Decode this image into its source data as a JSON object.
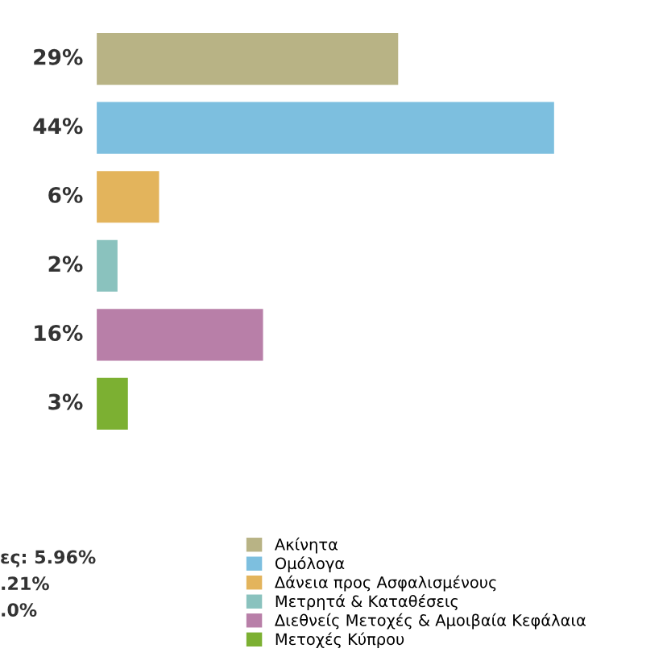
{
  "chart_data": {
    "type": "bar",
    "orientation": "horizontal",
    "stacked": true,
    "categories": [
      null,
      null,
      null,
      null,
      null,
      null
    ],
    "series": [
      {
        "name": "Ακίνητα",
        "color": "#b8b385",
        "values": [
          29,
          null,
          null,
          null,
          null,
          null
        ],
        "value_labels": [
          "29%",
          null,
          null,
          null,
          null,
          null
        ]
      },
      {
        "name": "Ομόλογα",
        "color": "#7dbfdf",
        "values": [
          null,
          44,
          null,
          null,
          null,
          null
        ],
        "value_labels": [
          null,
          "44%",
          null,
          null,
          null,
          null
        ]
      },
      {
        "name": "Δάνεια προς Ασφαλισμένους",
        "color": "#e3b45c",
        "values": [
          null,
          null,
          6,
          null,
          null,
          null
        ],
        "value_labels": [
          null,
          null,
          "6%",
          null,
          null,
          null
        ]
      },
      {
        "name": "Μετρητά & Καταθέσεις",
        "color": "#8ac2be",
        "values": [
          null,
          null,
          null,
          2,
          null,
          null
        ],
        "value_labels": [
          null,
          null,
          null,
          "2%",
          null,
          null
        ]
      },
      {
        "name": "Διεθνείς Μετοχές & Αμοιβαία Κεφάλαια",
        "color": "#b87fa8",
        "values": [
          null,
          null,
          null,
          null,
          16,
          null
        ],
        "value_labels": [
          null,
          null,
          null,
          null,
          "16%",
          null
        ]
      },
      {
        "name": "Μετοχές Κύπρου",
        "color": "#7cb032",
        "values": [
          null,
          null,
          null,
          null,
          null,
          3
        ],
        "value_labels": [
          null,
          null,
          null,
          null,
          null,
          "3%"
        ]
      }
    ],
    "legend": "bottom right",
    "annotations": [
      "ες: 5.96%",
      ".21%",
      ".0%"
    ]
  }
}
